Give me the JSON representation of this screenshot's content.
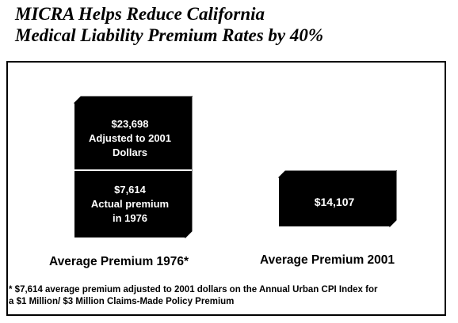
{
  "title_line1": "MICRA Helps Reduce California",
  "title_line2": "Medical Liability Premium Rates by 40%",
  "footnote_line1": "* $7,614 average premium adjusted to 2001 dollars on the Annual Urban CPI Index for",
  "footnote_line2": "a $1 Million/  $3 Million Claims-Made Policy Premium",
  "colors": {
    "bar": "#000000",
    "text_on_bar": "#ffffff",
    "background": "#ffffff"
  },
  "chart_data": {
    "type": "bar",
    "categories": [
      "Average Premium 1976*",
      "Average Premium 2001"
    ],
    "bars": [
      {
        "category": "Average Premium 1976*",
        "segments": [
          {
            "value": 7614,
            "label_lines": [
              "$7,614",
              "Actual premium",
              "in 1976"
            ]
          },
          {
            "value": 23698,
            "label_lines": [
              "$23,698",
              "Adjusted to 2001",
              "Dollars"
            ]
          }
        ]
      },
      {
        "category": "Average Premium 2001",
        "segments": [
          {
            "value": 14107,
            "label_lines": [
              "$14,107"
            ]
          }
        ]
      }
    ]
  }
}
